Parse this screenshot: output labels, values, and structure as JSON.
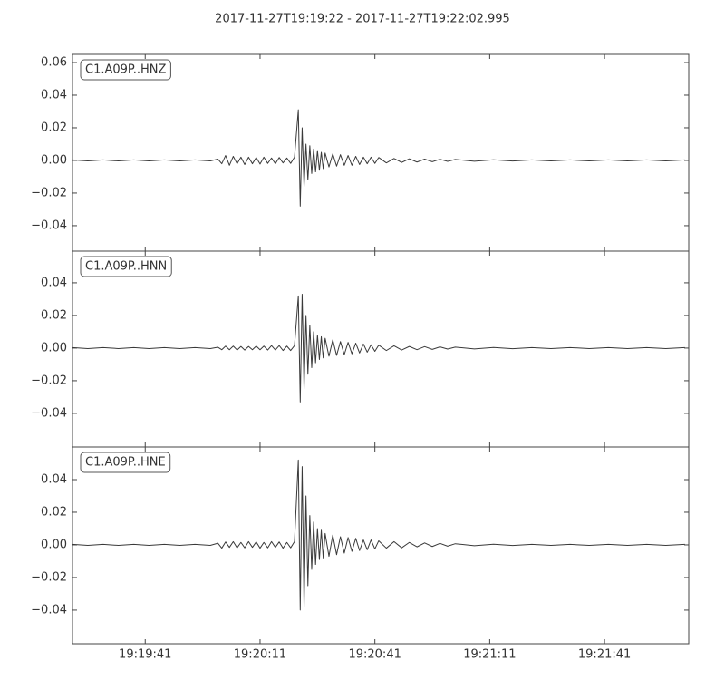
{
  "title": "2017-11-27T19:19:22  -  2017-11-27T19:22:02.995",
  "chart_data": [
    {
      "type": "line",
      "label": "C1.A09P..HNZ",
      "color": "#3a3a3a",
      "x": [
        0,
        4,
        8,
        12,
        16,
        20,
        24,
        28,
        32,
        36,
        38,
        39,
        40,
        41,
        42,
        43,
        44,
        45,
        46,
        47,
        48,
        49,
        50,
        51,
        52,
        53,
        54,
        55,
        56,
        57,
        58,
        59,
        59.5,
        60,
        60.5,
        61,
        61.5,
        62,
        62.5,
        63,
        63.5,
        64,
        64.5,
        65,
        65.5,
        66,
        67,
        68,
        69,
        70,
        71,
        72,
        73,
        74,
        75,
        76,
        77,
        78,
        79,
        80,
        82,
        84,
        86,
        88,
        90,
        92,
        94,
        96,
        98,
        100,
        105,
        110,
        115,
        120,
        125,
        130,
        135,
        140,
        145,
        150,
        155,
        160
      ],
      "values": [
        0.0003,
        -0.0003,
        0.0003,
        -0.0003,
        0.0003,
        -0.0003,
        0.0003,
        -0.0003,
        0.0003,
        -0.0003,
        0.0008,
        -0.002,
        0.003,
        -0.003,
        0.0025,
        -0.002,
        0.002,
        -0.0025,
        0.002,
        -0.002,
        0.0018,
        -0.0022,
        0.002,
        -0.0018,
        0.0015,
        -0.002,
        0.0018,
        -0.0015,
        0.0015,
        -0.0018,
        0.002,
        0.031,
        -0.028,
        0.02,
        -0.016,
        0.01,
        -0.012,
        0.009,
        -0.008,
        0.007,
        -0.007,
        0.006,
        -0.006,
        0.005,
        -0.005,
        0.0045,
        -0.004,
        0.004,
        -0.0035,
        0.0035,
        -0.003,
        0.003,
        -0.003,
        0.0025,
        -0.0025,
        0.002,
        -0.002,
        0.002,
        -0.0018,
        0.0018,
        -0.0015,
        0.0012,
        -0.0012,
        0.001,
        -0.001,
        0.0008,
        -0.0008,
        0.0007,
        -0.0006,
        0.0006,
        -0.0005,
        0.0004,
        -0.0004,
        0.0003,
        -0.0003,
        0.0003,
        -0.0003,
        0.0003,
        -0.0003,
        0.0003,
        -0.0003,
        0.0003
      ],
      "xlim": [
        0,
        160.995
      ],
      "ylim": [
        -0.0556,
        0.065
      ],
      "xticks": [
        19,
        49,
        79,
        109,
        139
      ],
      "yticks": [
        {
          "value": -0.04,
          "label": "−0.04"
        },
        {
          "value": -0.02,
          "label": "−0.02"
        },
        {
          "value": 0,
          "label": "0.00"
        },
        {
          "value": 0.02,
          "label": "0.02"
        },
        {
          "value": 0.04,
          "label": "0.04"
        },
        {
          "value": 0.06,
          "label": "0.06"
        }
      ]
    },
    {
      "type": "line",
      "label": "C1.A09P..HNN",
      "color": "#3a3a3a",
      "x": [
        0,
        4,
        8,
        12,
        16,
        20,
        24,
        28,
        32,
        36,
        38,
        39,
        40,
        41,
        42,
        43,
        44,
        45,
        46,
        47,
        48,
        49,
        50,
        51,
        52,
        53,
        54,
        55,
        56,
        57,
        58,
        59,
        59.5,
        60,
        60.5,
        61,
        61.5,
        62,
        62.5,
        63,
        63.5,
        64,
        64.5,
        65,
        65.5,
        66,
        67,
        68,
        69,
        70,
        71,
        72,
        73,
        74,
        75,
        76,
        77,
        78,
        79,
        80,
        82,
        84,
        86,
        88,
        90,
        92,
        94,
        96,
        98,
        100,
        105,
        110,
        115,
        120,
        125,
        130,
        135,
        140,
        145,
        150,
        155,
        160
      ],
      "values": [
        0.0003,
        -0.0003,
        0.0003,
        -0.0003,
        0.0003,
        -0.0003,
        0.0003,
        -0.0003,
        0.0003,
        -0.0003,
        0.0005,
        -0.001,
        0.0012,
        -0.001,
        0.0012,
        -0.0012,
        0.001,
        -0.0012,
        0.001,
        -0.001,
        0.0012,
        -0.001,
        0.0012,
        -0.0012,
        0.0015,
        -0.0012,
        0.0015,
        -0.0015,
        0.0012,
        -0.0015,
        0.0015,
        0.032,
        -0.033,
        0.033,
        -0.025,
        0.02,
        -0.016,
        0.014,
        -0.012,
        0.01,
        -0.009,
        0.008,
        -0.007,
        0.007,
        -0.006,
        0.006,
        -0.005,
        0.005,
        -0.0045,
        0.004,
        -0.004,
        0.0035,
        -0.0035,
        0.003,
        -0.003,
        0.0025,
        -0.0025,
        0.002,
        -0.002,
        0.0018,
        -0.0015,
        0.0014,
        -0.0012,
        0.001,
        -0.001,
        0.0009,
        -0.0008,
        0.0007,
        -0.0006,
        0.0006,
        -0.0005,
        0.0004,
        -0.0004,
        0.0003,
        -0.0003,
        0.0003,
        -0.0003,
        0.0003,
        -0.0003,
        0.0003,
        -0.0003,
        0.0003
      ],
      "xlim": [
        0,
        160.995
      ],
      "ylim": [
        -0.0606,
        0.0594
      ],
      "xticks": [
        19,
        49,
        79,
        109,
        139
      ],
      "yticks": [
        {
          "value": -0.04,
          "label": "−0.04"
        },
        {
          "value": -0.02,
          "label": "−0.02"
        },
        {
          "value": 0,
          "label": "0.00"
        },
        {
          "value": 0.02,
          "label": "0.02"
        },
        {
          "value": 0.04,
          "label": "0.04"
        }
      ]
    },
    {
      "type": "line",
      "label": "C1.A09P..HNE",
      "color": "#3a3a3a",
      "x": [
        0,
        4,
        8,
        12,
        16,
        20,
        24,
        28,
        32,
        36,
        38,
        39,
        40,
        41,
        42,
        43,
        44,
        45,
        46,
        47,
        48,
        49,
        50,
        51,
        52,
        53,
        54,
        55,
        56,
        57,
        58,
        59,
        59.5,
        60,
        60.5,
        61,
        61.5,
        62,
        62.5,
        63,
        63.5,
        64,
        64.5,
        65,
        65.5,
        66,
        67,
        68,
        69,
        70,
        71,
        72,
        73,
        74,
        75,
        76,
        77,
        78,
        79,
        80,
        82,
        84,
        86,
        88,
        90,
        92,
        94,
        96,
        98,
        100,
        105,
        110,
        115,
        120,
        125,
        130,
        135,
        140,
        145,
        150,
        155,
        160
      ],
      "values": [
        0.0003,
        -0.0003,
        0.0003,
        -0.0003,
        0.0003,
        -0.0003,
        0.0003,
        -0.0003,
        0.0003,
        -0.0003,
        0.001,
        -0.002,
        0.0018,
        -0.0015,
        0.002,
        -0.0018,
        0.0015,
        -0.0018,
        0.002,
        -0.0015,
        0.0018,
        -0.002,
        0.0015,
        -0.0018,
        0.002,
        -0.0015,
        0.0018,
        -0.002,
        0.0015,
        -0.0018,
        0.002,
        0.052,
        -0.04,
        0.048,
        -0.038,
        0.03,
        -0.025,
        0.018,
        -0.015,
        0.014,
        -0.012,
        0.01,
        -0.009,
        0.009,
        -0.008,
        0.007,
        -0.007,
        0.006,
        -0.006,
        0.005,
        -0.005,
        0.0045,
        -0.004,
        0.004,
        -0.0035,
        0.003,
        -0.003,
        0.003,
        -0.0025,
        0.0025,
        -0.002,
        0.002,
        -0.0018,
        0.0015,
        -0.0012,
        0.0012,
        -0.001,
        0.0009,
        -0.0008,
        0.0007,
        -0.0005,
        0.0004,
        -0.0004,
        0.0003,
        -0.0003,
        0.0003,
        -0.0003,
        0.0003,
        -0.0003,
        0.0003,
        -0.0003,
        0.0003
      ],
      "xlim": [
        0,
        160.995
      ],
      "ylim": [
        -0.0606,
        0.06
      ],
      "xticks": [
        {
          "value": 19,
          "label": "19:19:41"
        },
        {
          "value": 49,
          "label": "19:20:11"
        },
        {
          "value": 79,
          "label": "19:20:41"
        },
        {
          "value": 109,
          "label": "19:21:11"
        },
        {
          "value": 139,
          "label": "19:21:41"
        }
      ],
      "yticks": [
        {
          "value": -0.04,
          "label": "−0.04"
        },
        {
          "value": -0.02,
          "label": "−0.02"
        },
        {
          "value": 0,
          "label": "0.00"
        },
        {
          "value": 0.02,
          "label": "0.02"
        },
        {
          "value": 0.04,
          "label": "0.04"
        }
      ]
    }
  ]
}
